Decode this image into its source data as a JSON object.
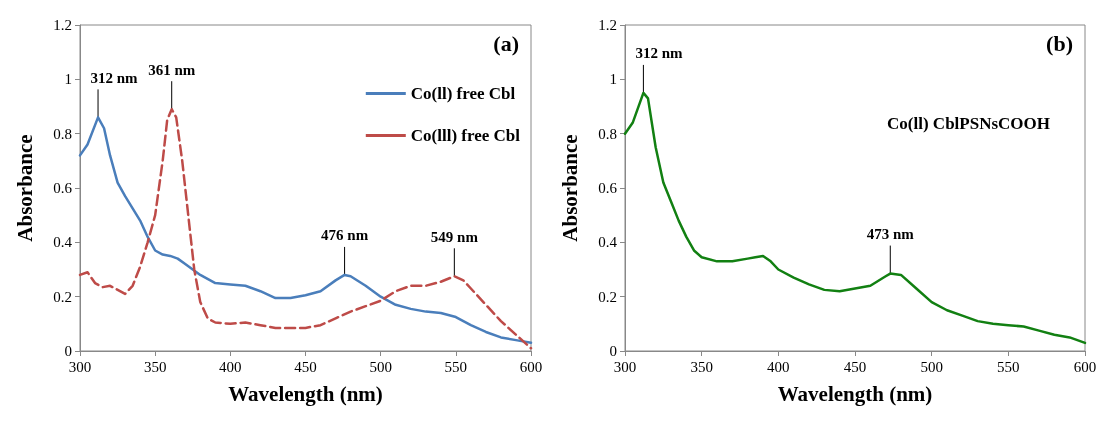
{
  "chart_data": [
    {
      "type": "line",
      "xlabel": "Wavelength (nm)",
      "ylabel": "Absorbance",
      "xlim": [
        300,
        600
      ],
      "xticks": [
        300,
        350,
        400,
        450,
        500,
        550,
        600
      ],
      "ylim": [
        0,
        1.2
      ],
      "yticks": [
        0,
        0.2,
        0.4,
        0.6,
        0.8,
        1,
        1.2
      ],
      "grid": false,
      "legend": "top right",
      "marker": "none",
      "annotations": [
        "(a)",
        {
          "text": "312 nm",
          "x": 312,
          "y": 0.86
        },
        {
          "text": "361 nm",
          "x": 361,
          "y": 0.89
        },
        {
          "text": "476 nm",
          "x": 476,
          "y": 0.28
        },
        {
          "text": "549 nm",
          "x": 549,
          "y": 0.275
        }
      ],
      "series": [
        {
          "name": "Co(ll) free Cbl",
          "color": "#4a7ebb",
          "line_style": "solid",
          "x": [
            300,
            305,
            312,
            316,
            320,
            325,
            330,
            340,
            345,
            350,
            355,
            360,
            365,
            370,
            380,
            390,
            400,
            410,
            420,
            430,
            440,
            450,
            460,
            470,
            476,
            480,
            490,
            500,
            510,
            520,
            530,
            540,
            550,
            560,
            570,
            580,
            590,
            600
          ],
          "values": [
            0.72,
            0.76,
            0.86,
            0.82,
            0.72,
            0.62,
            0.57,
            0.48,
            0.42,
            0.37,
            0.355,
            0.35,
            0.34,
            0.32,
            0.28,
            0.25,
            0.245,
            0.24,
            0.22,
            0.195,
            0.195,
            0.205,
            0.22,
            0.26,
            0.28,
            0.275,
            0.24,
            0.2,
            0.17,
            0.155,
            0.145,
            0.14,
            0.125,
            0.095,
            0.07,
            0.05,
            0.04,
            0.03
          ]
        },
        {
          "name": "Co(lll) free Cbl",
          "color": "#be4b48",
          "line_style": "dashed",
          "x": [
            300,
            305,
            310,
            315,
            320,
            330,
            335,
            340,
            345,
            350,
            355,
            358,
            361,
            364,
            368,
            372,
            376,
            380,
            385,
            390,
            400,
            410,
            420,
            430,
            440,
            450,
            460,
            470,
            480,
            490,
            500,
            510,
            520,
            530,
            540,
            549,
            555,
            560,
            570,
            580,
            590,
            600
          ],
          "values": [
            0.28,
            0.29,
            0.25,
            0.235,
            0.24,
            0.21,
            0.24,
            0.31,
            0.4,
            0.5,
            0.7,
            0.85,
            0.89,
            0.86,
            0.7,
            0.5,
            0.3,
            0.18,
            0.12,
            0.105,
            0.1,
            0.105,
            0.095,
            0.085,
            0.085,
            0.085,
            0.095,
            0.12,
            0.145,
            0.165,
            0.185,
            0.22,
            0.24,
            0.24,
            0.255,
            0.275,
            0.26,
            0.23,
            0.17,
            0.11,
            0.06,
            0.01
          ]
        }
      ]
    },
    {
      "type": "line",
      "xlabel": "Wavelength (nm)",
      "ylabel": "Absorbance",
      "xlim": [
        300,
        600
      ],
      "xticks": [
        300,
        350,
        400,
        450,
        500,
        550,
        600
      ],
      "ylim": [
        0,
        1.2
      ],
      "yticks": [
        0,
        0.2,
        0.4,
        0.6,
        0.8,
        1,
        1.2
      ],
      "grid": false,
      "legend": false,
      "marker": "none",
      "annotations": [
        "(b)",
        "Co(ll) CblPSNsCOOH",
        {
          "text": "312 nm",
          "x": 312,
          "y": 0.95
        },
        {
          "text": "473 nm",
          "x": 473,
          "y": 0.285
        }
      ],
      "series": [
        {
          "color": "#128012",
          "line_style": "solid",
          "x": [
            300,
            305,
            312,
            315,
            320,
            325,
            330,
            335,
            340,
            345,
            350,
            360,
            370,
            380,
            385,
            390,
            395,
            400,
            410,
            420,
            430,
            440,
            450,
            460,
            470,
            473,
            480,
            490,
            500,
            510,
            520,
            530,
            540,
            550,
            560,
            570,
            580,
            590,
            600
          ],
          "values": [
            0.8,
            0.84,
            0.95,
            0.93,
            0.75,
            0.62,
            0.55,
            0.48,
            0.42,
            0.37,
            0.345,
            0.33,
            0.33,
            0.34,
            0.345,
            0.35,
            0.33,
            0.3,
            0.27,
            0.245,
            0.225,
            0.22,
            0.23,
            0.24,
            0.275,
            0.285,
            0.28,
            0.23,
            0.18,
            0.15,
            0.13,
            0.11,
            0.1,
            0.095,
            0.09,
            0.075,
            0.06,
            0.05,
            0.03
          ]
        }
      ]
    }
  ]
}
